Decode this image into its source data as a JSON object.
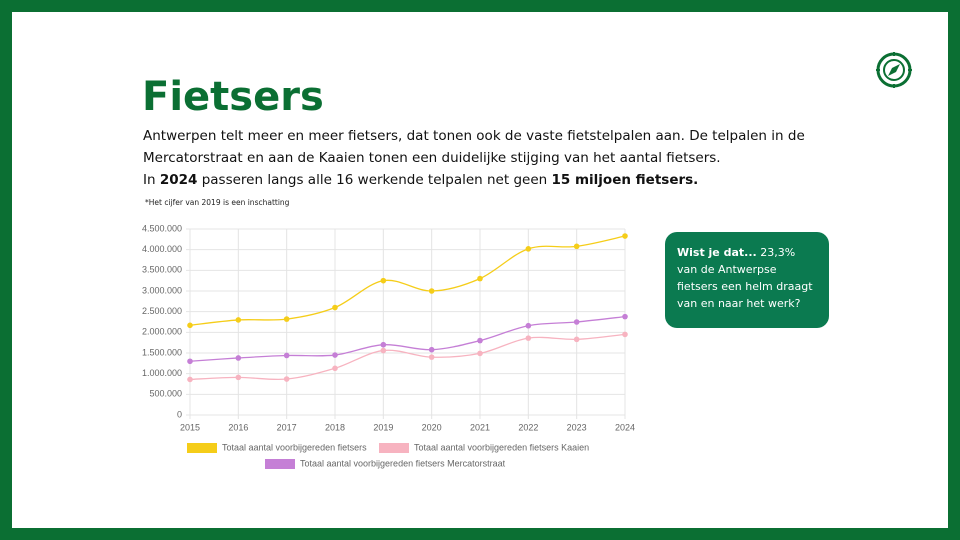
{
  "header": {
    "title": "Fietsers"
  },
  "intro": {
    "line1": "Antwerpen telt meer en meer fietsers, dat tonen ook de vaste fietstelpalen aan. De telpalen in de",
    "line2": "Mercatorstraat en aan de Kaaien tonen een duidelijke stijging van het aantal fietsers.",
    "line3_a": "In ",
    "line3_b": "2024",
    "line3_c": " passeren langs alle 16 werkende telpalen net geen ",
    "line3_d": "15 miljoen fietsers."
  },
  "note": "*Het cijfer van 2019 is een inschatting",
  "callout": {
    "bold": "Wist je dat...",
    "text": " 23,3% van de Antwerpse fietsers een helm draagt van en naar het werk?"
  },
  "chart_data": {
    "type": "line",
    "smooth": true,
    "grid": true,
    "x": [
      2015,
      2016,
      2017,
      2018,
      2019,
      2020,
      2021,
      2022,
      2023,
      2024
    ],
    "xlim": [
      2015,
      2024
    ],
    "xticks": [
      2015,
      2016,
      2017,
      2018,
      2019,
      2020,
      2021,
      2022,
      2023,
      2024
    ],
    "ylim": [
      0,
      4500000
    ],
    "yticks": [
      0,
      {
        "value": 500000,
        "label": "500.000"
      },
      {
        "value": 1000000,
        "label": "1.000.000"
      },
      {
        "value": 1500000,
        "label": "1.500.000"
      },
      {
        "value": 2000000,
        "label": "2.000.000"
      },
      {
        "value": 2500000,
        "label": "2.500.000"
      },
      {
        "value": 3000000,
        "label": "3.000.000"
      },
      {
        "value": 3500000,
        "label": "3.500.000"
      },
      {
        "value": 4000000,
        "label": "4.000.000"
      },
      {
        "value": 4500000,
        "label": "4.500.000"
      }
    ],
    "series": [
      {
        "name": "Totaal aantal voorbijgereden fietsers",
        "color": "#f5cd19",
        "values": [
          2170000,
          2300000,
          2320000,
          2600000,
          3250000,
          3000000,
          3300000,
          4020000,
          4080000,
          4330000
        ]
      },
      {
        "name": "Totaal aantal voorbijgereden fietsers Kaaien",
        "color": "#f7b3c0",
        "values": [
          860000,
          910000,
          870000,
          1130000,
          1560000,
          1400000,
          1490000,
          1860000,
          1830000,
          1950000
        ]
      },
      {
        "name": "Totaal aantal voorbijgereden fietsers Mercatorstraat",
        "color": "#c57fd6",
        "values": [
          1300000,
          1380000,
          1440000,
          1450000,
          1700000,
          1580000,
          1800000,
          2160000,
          2250000,
          2380000
        ]
      }
    ]
  }
}
